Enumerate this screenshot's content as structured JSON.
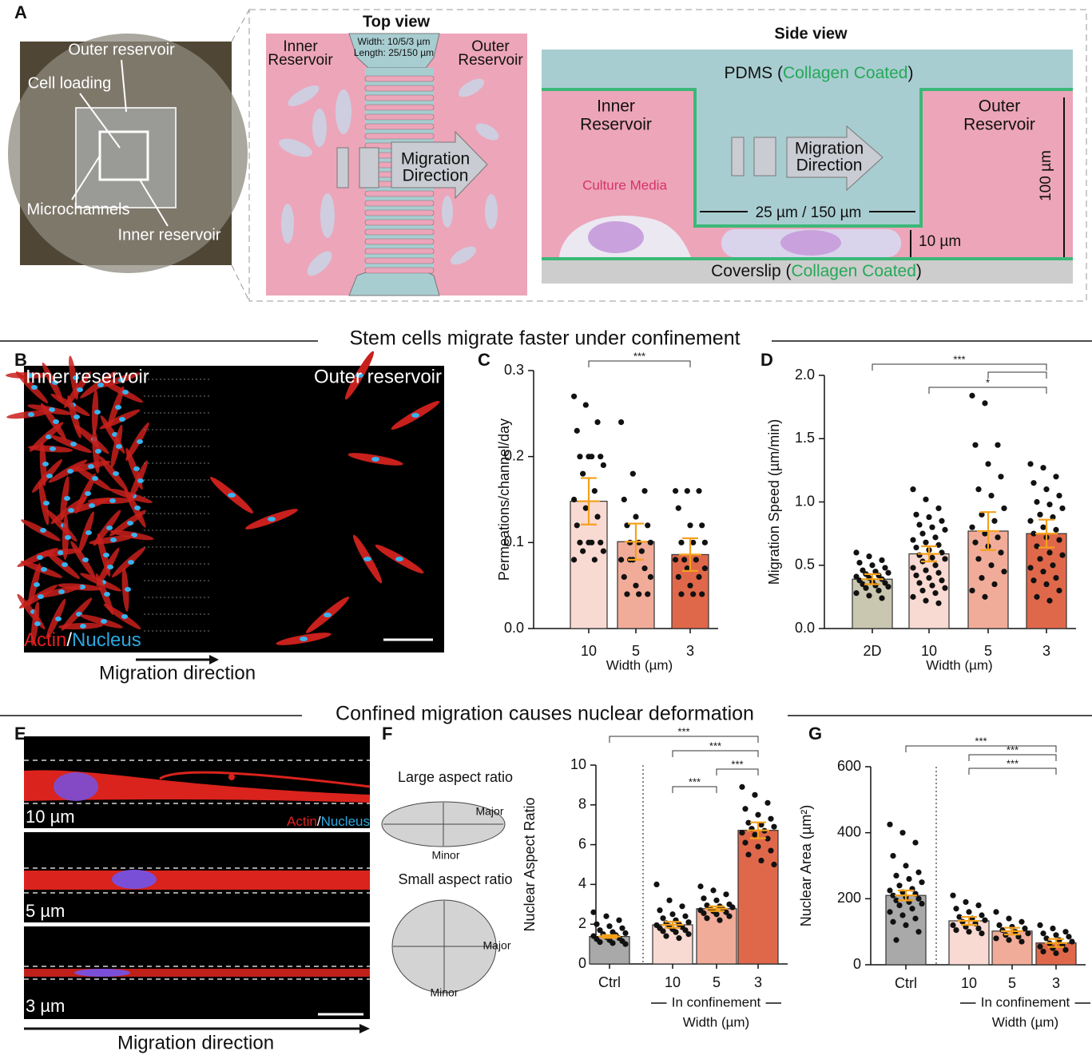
{
  "figure": {
    "panel_labels": [
      "A",
      "B",
      "C",
      "D",
      "E",
      "F",
      "G"
    ],
    "section_titles": [
      "Stem cells migrate faster under confinement",
      "Confined migration causes nuclear deformation"
    ],
    "panel_a": {
      "photo_labels": [
        "Outer reservoir",
        "Cell loading",
        "Microchannels",
        "Inner reservoir"
      ],
      "top_view": {
        "title": "Top view",
        "inner": [
          "Inner",
          "Reservoir"
        ],
        "outer": [
          "Outer",
          "Reservoir"
        ],
        "dims": [
          "Width: 10/5/3 µm",
          "Length: 25/150 µm"
        ],
        "arrow": [
          "Migration",
          "Direction"
        ]
      },
      "side_view": {
        "title": "Side view",
        "pdms": [
          "PDMS (",
          "Collagen Coated",
          ")"
        ],
        "coverslip": [
          "Coverslip (",
          "Collagen Coated",
          ")"
        ],
        "inner": [
          "Inner",
          "Reservoir"
        ],
        "outer": [
          "Outer",
          "Reservoir"
        ],
        "arrow": [
          "Migration",
          "Direction"
        ],
        "media": "Culture Media",
        "length": "25 µm / 150 µm",
        "height": "100 µm",
        "gap": "10 µm"
      }
    },
    "panel_b": {
      "inner": "Inner reservoir",
      "outer": "Outer reservoir",
      "stain": [
        "Actin",
        "/",
        "Nucleus"
      ],
      "direction": "Migration direction"
    },
    "panel_e": {
      "widths": [
        "10 µm",
        "5 µm",
        "3 µm"
      ],
      "stain": [
        "Actin",
        "/",
        "Nucleus"
      ],
      "direction": "Migration direction"
    },
    "panel_f_diagram": {
      "large": "Large aspect ratio",
      "small": "Small aspect ratio",
      "major": "Major",
      "minor": "Minor"
    }
  },
  "chart_data": [
    {
      "type": "bar",
      "ylabel": "Permeations/channel/day",
      "xlabel": "Width (µm)",
      "categories": [
        "10",
        "5",
        "3"
      ],
      "values": [
        0.148,
        0.101,
        0.086
      ],
      "errors": [
        0.027,
        0.021,
        0.019
      ],
      "colors": [
        "#f9dad3",
        "#f1ac99",
        "#e0684a"
      ],
      "points": [
        [
          0.27,
          0.26,
          0.24,
          0.23,
          0.2,
          0.2,
          0.2,
          0.2,
          0.19,
          0.18,
          0.16,
          0.15,
          0.14,
          0.13,
          0.12,
          0.1,
          0.1,
          0.1,
          0.1,
          0.09,
          0.09,
          0.08,
          0.08
        ],
        [
          0.24,
          0.18,
          0.16,
          0.15,
          0.13,
          0.12,
          0.12,
          0.1,
          0.1,
          0.1,
          0.09,
          0.08,
          0.08,
          0.07,
          0.06,
          0.05,
          0.04,
          0.04,
          0.04,
          0.06,
          0.08
        ],
        [
          0.16,
          0.16,
          0.16,
          0.14,
          0.12,
          0.12,
          0.1,
          0.1,
          0.1,
          0.08,
          0.08,
          0.08,
          0.07,
          0.06,
          0.06,
          0.05,
          0.04,
          0.04,
          0.04,
          0.07
        ]
      ],
      "ylim": [
        0,
        0.3
      ],
      "yticks": [
        {
          "value": 0,
          "label": "0.0"
        },
        0.1,
        0.2,
        0.3
      ],
      "brackets": [
        {
          "from": "10",
          "to": "3",
          "label": "***"
        }
      ]
    },
    {
      "type": "bar",
      "ylabel": "Migration Speed (µm/min)",
      "xlabel": "Width (µm)",
      "categories": [
        "2D",
        "10",
        "5",
        "3"
      ],
      "values": [
        0.39,
        0.59,
        0.77,
        0.75
      ],
      "errors": [
        0.04,
        0.06,
        0.15,
        0.11
      ],
      "colors": [
        "#c9c7b0",
        "#f9dad3",
        "#f1ac99",
        "#e0684a"
      ],
      "points": [
        [
          0.6,
          0.57,
          0.54,
          0.52,
          0.5,
          0.48,
          0.46,
          0.45,
          0.44,
          0.43,
          0.42,
          0.41,
          0.4,
          0.39,
          0.38,
          0.37,
          0.36,
          0.35,
          0.34,
          0.33,
          0.32,
          0.3,
          0.28,
          0.26,
          0.24
        ],
        [
          1.1,
          1.02,
          0.95,
          0.9,
          0.88,
          0.85,
          0.82,
          0.8,
          0.78,
          0.75,
          0.72,
          0.7,
          0.68,
          0.66,
          0.64,
          0.62,
          0.6,
          0.58,
          0.56,
          0.55,
          0.53,
          0.5,
          0.48,
          0.46,
          0.44,
          0.42,
          0.4,
          0.38,
          0.36,
          0.34,
          0.32,
          0.3,
          0.28,
          0.25,
          0.22,
          0.2
        ],
        [
          1.84,
          1.78,
          1.45,
          1.45,
          1.3,
          1.2,
          1.1,
          1.05,
          0.95,
          0.9,
          0.85,
          0.8,
          0.75,
          0.72,
          0.68,
          0.65,
          0.6,
          0.55,
          0.5,
          0.45,
          0.4,
          0.35,
          0.3,
          0.25
        ],
        [
          1.3,
          1.27,
          1.2,
          1.15,
          1.1,
          1.05,
          1.0,
          0.98,
          0.95,
          0.9,
          0.88,
          0.85,
          0.8,
          0.78,
          0.75,
          0.72,
          0.7,
          0.65,
          0.6,
          0.58,
          0.55,
          0.5,
          0.48,
          0.45,
          0.4,
          0.38,
          0.35,
          0.3,
          0.25,
          0.22
        ]
      ],
      "ylim": [
        0,
        2.0
      ],
      "yticks": [
        {
          "value": 0,
          "label": "0.0"
        },
        0.5,
        {
          "value": 1,
          "label": "1.0"
        },
        1.5,
        {
          "value": 2,
          "label": "2.0"
        }
      ],
      "brackets": [
        {
          "from": "2D",
          "to": "3",
          "label": "***"
        },
        {
          "from": "5",
          "to": "3",
          "label": ""
        },
        {
          "from": "10",
          "to": "3",
          "label": "*"
        }
      ]
    },
    {
      "type": "bar",
      "ylabel": "Nuclear Aspect Ratio",
      "xlabel": "Width (µm)",
      "group_label": "In confinement",
      "categories": [
        "Ctrl",
        "10",
        "5",
        "3"
      ],
      "values": [
        1.38,
        1.97,
        2.78,
        6.72
      ],
      "errors": [
        0.07,
        0.15,
        0.12,
        0.4
      ],
      "colors": [
        "#a9a9a9",
        "#f9dad3",
        "#f1ac99",
        "#e0684a"
      ],
      "points": [
        [
          2.6,
          2.4,
          2.2,
          2.0,
          1.9,
          1.8,
          1.7,
          1.6,
          1.55,
          1.5,
          1.45,
          1.4,
          1.35,
          1.3,
          1.25,
          1.2,
          1.15,
          1.1,
          1.05,
          1.0
        ],
        [
          4.0,
          3.2,
          2.9,
          2.7,
          2.5,
          2.4,
          2.3,
          2.2,
          2.1,
          2.05,
          2.0,
          1.95,
          1.9,
          1.85,
          1.8,
          1.75,
          1.7,
          1.65,
          1.6,
          1.5,
          1.4,
          1.3
        ],
        [
          3.9,
          3.7,
          3.5,
          3.3,
          3.2,
          3.0,
          2.95,
          2.9,
          2.85,
          2.8,
          2.75,
          2.7,
          2.65,
          2.6,
          2.55,
          2.5,
          2.4,
          2.3,
          2.2
        ],
        [
          8.9,
          8.5,
          8.1,
          7.8,
          7.5,
          7.3,
          7.1,
          7.0,
          6.9,
          6.8,
          6.7,
          6.6,
          6.5,
          6.3,
          6.1,
          5.9,
          5.7,
          5.5,
          5.2,
          5.0
        ]
      ],
      "ylim": [
        0,
        10
      ],
      "yticks": [
        0,
        2,
        4,
        6,
        8,
        10
      ],
      "brackets": [
        {
          "from": "Ctrl",
          "to": "3",
          "label": "***"
        },
        {
          "from": "10",
          "to": "3",
          "label": "***"
        },
        {
          "from": "5",
          "to": "3",
          "label": "***"
        },
        {
          "from": "10",
          "to": "5",
          "label": "***"
        }
      ]
    },
    {
      "type": "bar",
      "ylabel": "Nuclear Area (µm²)",
      "xlabel": "Width (µm)",
      "group_label": "In confinement",
      "categories": [
        "Ctrl",
        "10",
        "5",
        "3"
      ],
      "values": [
        210,
        133,
        102,
        66
      ],
      "errors": [
        15,
        12,
        10,
        12
      ],
      "colors": [
        "#a9a9a9",
        "#f9dad3",
        "#f1ac99",
        "#e0684a"
      ],
      "points": [
        [
          425,
          400,
          370,
          330,
          300,
          280,
          270,
          260,
          250,
          240,
          230,
          225,
          220,
          215,
          210,
          205,
          200,
          195,
          190,
          185,
          180,
          170,
          160,
          150,
          140,
          130,
          120,
          100,
          75
        ],
        [
          210,
          190,
          180,
          170,
          160,
          150,
          145,
          140,
          135,
          130,
          125,
          120,
          115,
          110,
          105,
          100,
          95
        ],
        [
          160,
          140,
          130,
          120,
          115,
          110,
          105,
          100,
          95,
          90,
          85,
          80,
          75,
          70
        ],
        [
          120,
          110,
          100,
          95,
          90,
          85,
          80,
          75,
          70,
          65,
          60,
          55,
          50,
          45,
          40,
          35
        ]
      ],
      "ylim": [
        0,
        600
      ],
      "yticks": [
        0,
        200,
        400,
        600
      ],
      "brackets": [
        {
          "from": "Ctrl",
          "to": "3",
          "label": "***"
        },
        {
          "from": "10",
          "to": "3",
          "label": "***"
        },
        {
          "from": "10",
          "to": "3",
          "label": "***"
        }
      ]
    }
  ]
}
